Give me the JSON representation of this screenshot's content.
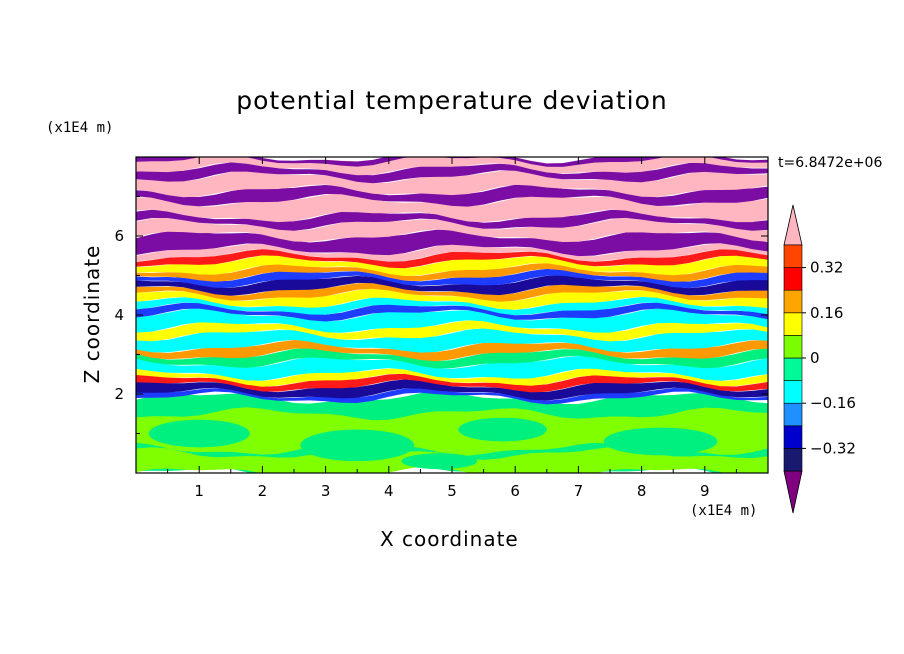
{
  "chart_data": {
    "type": "heatmap",
    "title": "potential temperature deviation",
    "xlabel": "X coordinate",
    "ylabel": "Z coordinate",
    "x_unit": "(x1E4 m)",
    "y_unit": "(x1E4 m)",
    "time_label": "t=6.8472e+06",
    "xlim": [
      0,
      10
    ],
    "ylim": [
      0,
      8
    ],
    "x_ticks": [
      "1",
      "2",
      "3",
      "4",
      "5",
      "6",
      "7",
      "8",
      "9"
    ],
    "y_ticks": [
      "2",
      "4",
      "6"
    ],
    "colorbar": {
      "labels": [
        "0.32",
        "0.16",
        "0",
        "−0.16",
        "−0.32"
      ],
      "label_values": [
        0.32,
        0.16,
        0,
        -0.16,
        -0.32
      ],
      "levels": [
        -0.4,
        -0.32,
        -0.24,
        -0.16,
        -0.08,
        0,
        0.08,
        0.16,
        0.24,
        0.32,
        0.4
      ],
      "colors": [
        "#800080",
        "#191970",
        "#0000cd",
        "#1e90ff",
        "#00ffff",
        "#00fa9a",
        "#7cfc00",
        "#ffff00",
        "#ffa500",
        "#ff0000",
        "#ff4500",
        "#ffb6c1"
      ],
      "extend": "both"
    },
    "layers": [
      {
        "z": [
          0,
          1.9
        ],
        "value": 0.04,
        "note": "lower layer mostly green / lime"
      },
      {
        "z": [
          1.9,
          2.4
        ],
        "value": -0.2,
        "note": "thin mixed blue-red band"
      },
      {
        "z": [
          2.4,
          4.0
        ],
        "value": -0.1,
        "note": "cyan / green / yellow bands"
      },
      {
        "z": [
          4.0,
          5.6
        ],
        "value": 0.1,
        "note": "mixed bands red, yellow, blue"
      },
      {
        "z": [
          5.6,
          8.0
        ],
        "value": 0.45,
        "note": "alternating pink and purple stripes"
      }
    ]
  },
  "colors": {
    "pink": "#ffb6c1",
    "purple": "#7b0da5",
    "green": "#00f080",
    "lime": "#80ff00",
    "cyan": "#00ffff",
    "blue": "#1e3cff",
    "navy": "#1a0a9a",
    "yellow": "#ffff00",
    "orange": "#ff9900",
    "red": "#ff1a1a"
  }
}
